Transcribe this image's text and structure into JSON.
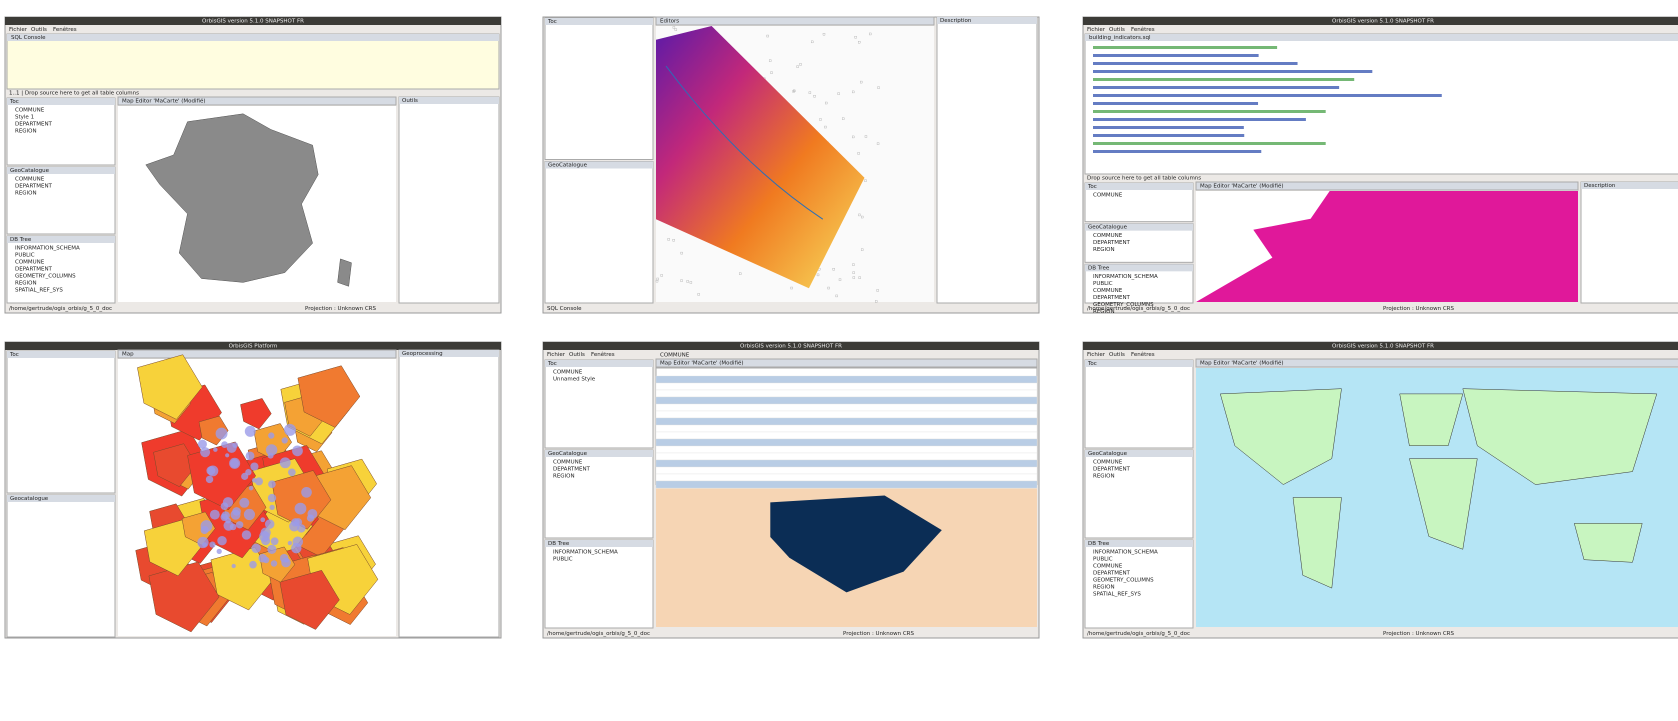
{
  "panels": [
    {
      "title": "OrbisGIS version 5.1.0 SNAPSHOT FR",
      "menu": [
        "Fichier",
        "Outils",
        "Fenêtres"
      ],
      "top": {
        "title": "SQL Console",
        "note": "1..1 | Drop source here to get all table columns"
      },
      "docks": [
        {
          "title": "Toc",
          "items": [
            "COMMUNE",
            "Style 1",
            "DEPARTMENT",
            "REGION"
          ]
        },
        {
          "title": "GeoCatalogue",
          "items": [
            "COMMUNE",
            "DEPARTMENT",
            "REGION"
          ]
        },
        {
          "title": "DB Tree",
          "items": [
            "INFORMATION_SCHEMA",
            "PUBLIC",
            "COMMUNE",
            "DEPARTMENT",
            "GEOMETRY_COLUMNS",
            "REGION",
            "SPATIAL_REF_SYS"
          ]
        }
      ],
      "map_title": "Map Editor 'MaCarte' (Modifié)",
      "right": {
        "title": "Outils"
      },
      "status": "/home/gertrude/ogis_orbis/g_5_0_doc",
      "coords": "Projection : Unknown CRS"
    },
    {
      "docks": [
        {
          "title": "Toc",
          "items": []
        },
        {
          "title": "GeoCatalogue",
          "items": []
        }
      ],
      "map_title": "Editors",
      "right": {
        "title": "Description"
      },
      "status": "SQL Console"
    },
    {
      "title": "OrbisGIS version 5.1.0 SNAPSHOT FR",
      "menu": [
        "Fichier",
        "Outils",
        "Fenêtres"
      ],
      "top": {
        "title": "building_indicators.sql",
        "note": "Drop source here to get all table columns"
      },
      "docks": [
        {
          "title": "Toc",
          "items": [
            "COMMUNE"
          ]
        },
        {
          "title": "GeoCatalogue",
          "items": [
            "COMMUNE",
            "DEPARTMENT",
            "REGION"
          ]
        },
        {
          "title": "DB Tree",
          "items": [
            "INFORMATION_SCHEMA",
            "PUBLIC",
            "COMMUNE",
            "DEPARTMENT",
            "GEOMETRY_COLUMNS",
            "REGION"
          ]
        }
      ],
      "map_title": "Map Editor 'MaCarte' (Modifié)",
      "right": {
        "title": "Description"
      },
      "status": "/home/gertrude/ogis_orbis/g_5_0_doc",
      "coords": "Projection : Unknown CRS"
    },
    {
      "title": "OrbisGIS Platform",
      "docks": [
        {
          "title": "Toc",
          "items": []
        },
        {
          "title": "Geocatalogue",
          "items": []
        }
      ],
      "map_title": "Map",
      "right": {
        "title": "Geoprocessing"
      }
    },
    {
      "title": "OrbisGIS version 5.1.0 SNAPSHOT FR",
      "menu": [
        "Fichier",
        "Outils",
        "Fenêtres"
      ],
      "top": {
        "title": "COMMUNE"
      },
      "docks": [
        {
          "title": "Toc",
          "items": [
            "COMMUNE",
            "Unnamed Style"
          ]
        },
        {
          "title": "GeoCatalogue",
          "items": [
            "COMMUNE",
            "DEPARTMENT",
            "REGION"
          ]
        },
        {
          "title": "DB Tree",
          "items": [
            "INFORMATION_SCHEMA",
            "PUBLIC"
          ]
        }
      ],
      "map_title": "Map Editor 'MaCarte' (Modifié)",
      "status": "/home/gertrude/ogis_orbis/g_5_0_doc",
      "coords": "Projection : Unknown CRS"
    },
    {
      "title": "OrbisGIS version 5.1.0 SNAPSHOT FR",
      "menu": [
        "Fichier",
        "Outils",
        "Fenêtres"
      ],
      "docks": [
        {
          "title": "Toc",
          "items": []
        },
        {
          "title": "GeoCatalogue",
          "items": [
            "COMMUNE",
            "DEPARTMENT",
            "REGION"
          ]
        },
        {
          "title": "DB Tree",
          "items": [
            "INFORMATION_SCHEMA",
            "PUBLIC",
            "COMMUNE",
            "DEPARTMENT",
            "GEOMETRY_COLUMNS",
            "REGION",
            "SPATIAL_REF_SYS"
          ]
        }
      ],
      "map_title": "Map Editor 'MaCarte' (Modifié)",
      "status": "/home/gertrude/ogis_orbis/g_5_0_doc",
      "coords": "Projection : Unknown CRS"
    }
  ]
}
